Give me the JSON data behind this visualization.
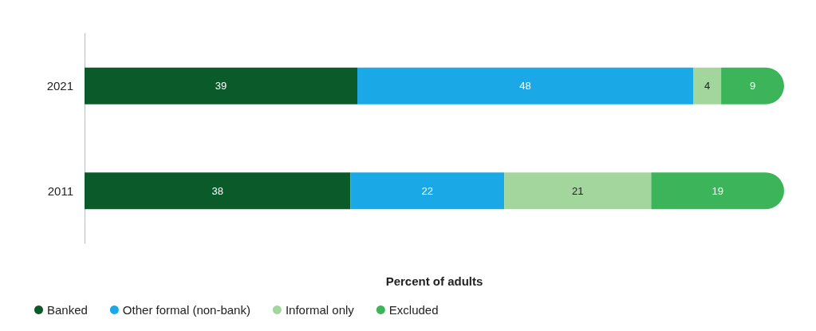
{
  "chart_data": {
    "type": "bar",
    "orientation": "horizontal",
    "stacked": true,
    "categories": [
      "2021",
      "2011"
    ],
    "series": [
      {
        "name": "Banked",
        "color": "#0b5a2a",
        "values": [
          39,
          38
        ]
      },
      {
        "name": "Other formal (non-bank)",
        "color": "#1aa9e6",
        "values": [
          48,
          22
        ]
      },
      {
        "name": "Informal only",
        "color": "#a3d69c",
        "values": [
          4,
          21
        ]
      },
      {
        "name": "Excluded",
        "color": "#3cb55a",
        "values": [
          9,
          19
        ]
      }
    ],
    "xlabel": "Percent of adults",
    "xlim": [
      0,
      100
    ],
    "tick_labels": "y",
    "data_labels": true,
    "grid": false,
    "legend": "bottom left"
  }
}
